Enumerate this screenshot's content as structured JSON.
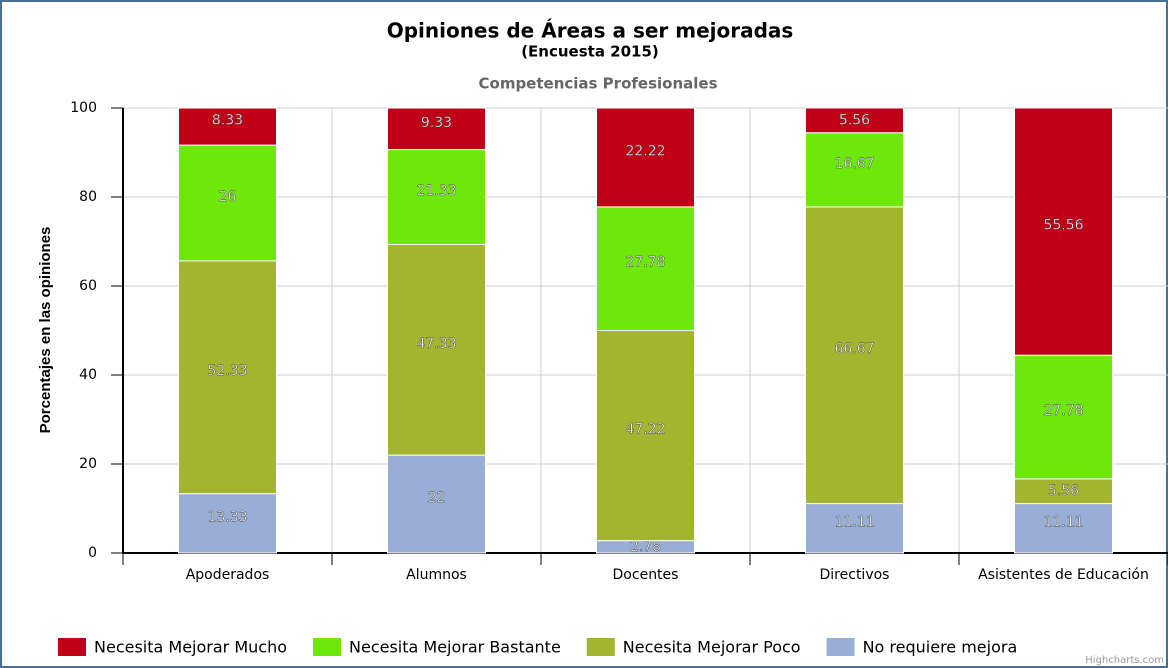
{
  "chart_data": {
    "type": "stacked_bar",
    "title": "Opiniones de Áreas a ser mejoradas",
    "subtitle": "(Encuesta 2015)",
    "subtitle2": "Competencias Profesionales",
    "y_label": "Porcentajes en las opiniones",
    "credit": "Highcharts.com",
    "categories": [
      "Apoderados",
      "Alumnos",
      "Docentes",
      "Directivos",
      "Asistentes de Educación"
    ],
    "series": [
      {
        "name": "Necesita Mejorar Mucho",
        "color": "#c00018",
        "values": [
          8.33,
          9.33,
          22.22,
          5.56,
          55.56
        ]
      },
      {
        "name": "Necesita Mejorar Bastante",
        "color": "#6ee80a",
        "values": [
          26,
          21.33,
          27.78,
          16.67,
          27.78
        ]
      },
      {
        "name": "Necesita Mejorar Poco",
        "color": "#a3b52e",
        "values": [
          52.33,
          47.33,
          47.22,
          66.67,
          5.56
        ]
      },
      {
        "name": "No requiere mejora",
        "color": "#98aed6",
        "values": [
          13.33,
          22,
          2.78,
          11.11,
          11.11
        ]
      }
    ],
    "ylim": [
      0,
      100
    ],
    "yticks": [
      0,
      20,
      40,
      60,
      80,
      100
    ],
    "grid": true,
    "legend": "bottom"
  }
}
